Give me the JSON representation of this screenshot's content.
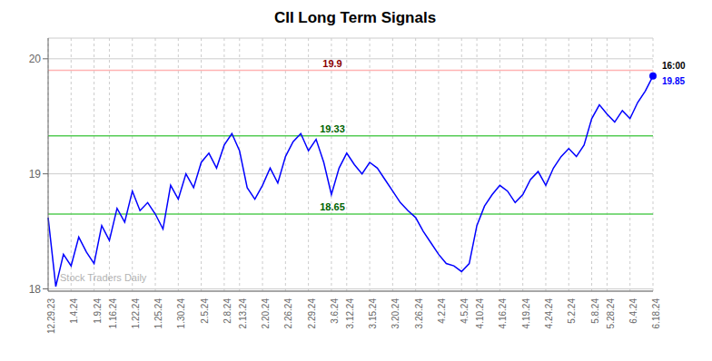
{
  "chart_data": {
    "type": "line",
    "title": "CII Long Term Signals",
    "watermark": "Stock Traders Daily",
    "categories": [
      "12.29.23",
      null,
      null,
      "1.4.24",
      null,
      null,
      "1.9.24",
      null,
      "1.16.24",
      null,
      null,
      "1.22.24",
      null,
      null,
      "1.25.24",
      null,
      null,
      "1.30.24",
      null,
      null,
      "2.5.24",
      null,
      null,
      "2.8.24",
      null,
      "2.13.24",
      null,
      null,
      "2.20.24",
      null,
      null,
      "2.26.24",
      null,
      null,
      "2.29.24",
      null,
      null,
      "3.6.24",
      null,
      "3.12.24",
      null,
      null,
      "3.15.24",
      null,
      null,
      "3.20.24",
      null,
      null,
      "3.26.24",
      null,
      null,
      "4.2.24",
      null,
      null,
      "4.5.24",
      null,
      "4.10.24",
      null,
      null,
      "4.16.24",
      null,
      null,
      "4.19.24",
      null,
      null,
      "4.24.24",
      null,
      null,
      "5.2.24",
      null,
      null,
      "5.8.24",
      null,
      "5.28.24",
      null,
      null,
      "6.4.24",
      null,
      null,
      "6.18.24"
    ],
    "values": [
      18.62,
      18.02,
      18.3,
      18.2,
      18.45,
      18.32,
      18.22,
      18.55,
      18.42,
      18.7,
      18.58,
      18.85,
      18.68,
      18.75,
      18.65,
      18.52,
      18.9,
      18.78,
      19.0,
      18.88,
      19.1,
      19.18,
      19.05,
      19.25,
      19.35,
      19.2,
      18.88,
      18.78,
      18.9,
      19.05,
      18.92,
      19.15,
      19.28,
      19.35,
      19.2,
      19.3,
      19.1,
      18.82,
      19.05,
      19.18,
      19.08,
      19.0,
      19.1,
      19.05,
      18.95,
      18.85,
      18.75,
      18.68,
      18.62,
      18.5,
      18.4,
      18.3,
      18.22,
      18.2,
      18.15,
      18.22,
      18.55,
      18.72,
      18.82,
      18.9,
      18.85,
      18.75,
      18.82,
      18.95,
      19.02,
      18.9,
      19.05,
      19.15,
      19.22,
      19.15,
      19.25,
      19.48,
      19.6,
      19.52,
      19.45,
      19.55,
      19.48,
      19.62,
      19.72,
      19.85
    ],
    "color": "blue",
    "ylim": [
      17.98,
      20.18
    ],
    "yticks": [
      18,
      19,
      20
    ],
    "grid": true,
    "reference_lines": [
      {
        "value": 19.9,
        "color": "#ffb3b3",
        "label_color": "darkred"
      },
      {
        "value": 19.33,
        "color": "#55cc55",
        "label_color": "darkgreen"
      },
      {
        "value": 18.65,
        "color": "#55cc55",
        "label_color": "darkgreen"
      }
    ],
    "last_point": {
      "time": "16:00",
      "price": 19.85
    }
  }
}
